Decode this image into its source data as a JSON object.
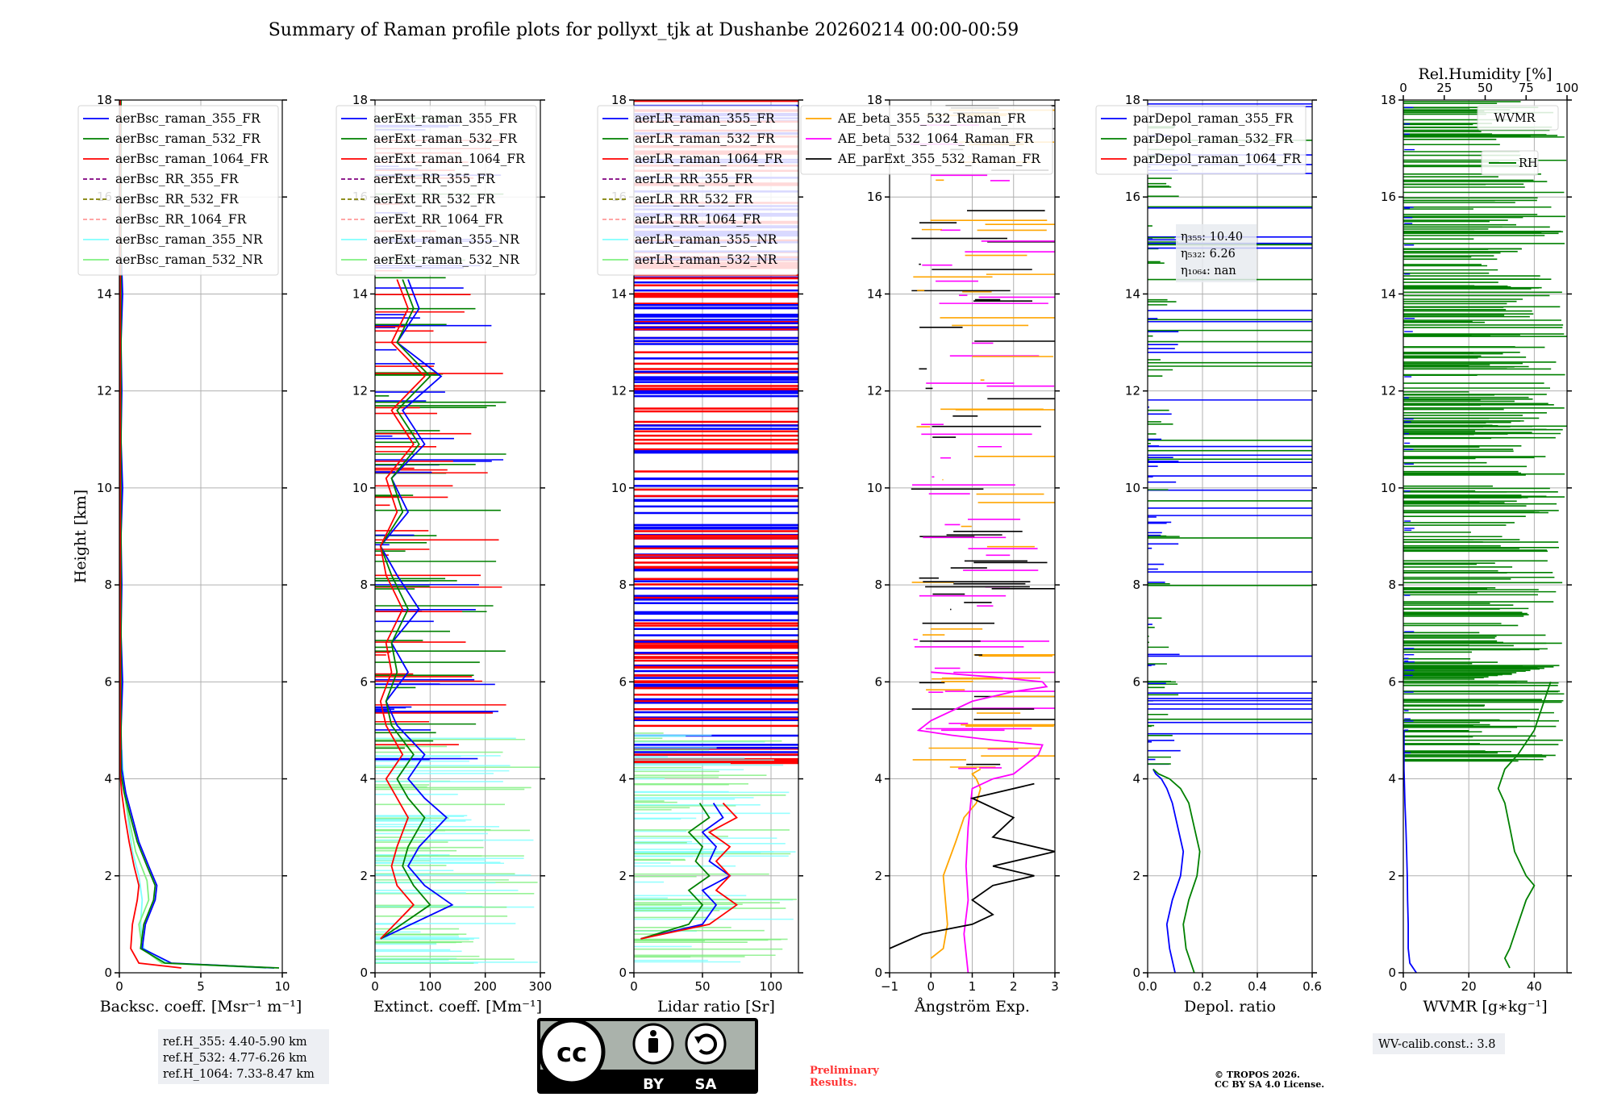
{
  "title": "Summary of Raman profile plots for pollyxt_tjk at Dushanbe 20260214 00:00-00:59",
  "colors": {
    "blue": "#0000ff",
    "green": "#008000",
    "red": "#ff0000",
    "purple": "#800080",
    "olive": "#808000",
    "salmon": "#ff9999",
    "cyan": "#7fffff",
    "lightgreen": "#7ff07f",
    "orange": "#ffa500",
    "magenta": "#ff00ff",
    "black": "#000000"
  },
  "chart_data": [
    {
      "type": "line",
      "name": "backscatter",
      "xlabel": "Backsc. coeff. [Msr⁻¹ m⁻¹]",
      "ylabel": "Height [km]",
      "xlim": [
        0,
        10
      ],
      "ylim": [
        0,
        18
      ],
      "xticks": [
        "0",
        "5",
        "10"
      ],
      "yticks": [
        "0",
        "2",
        "4",
        "6",
        "8",
        "10",
        "12",
        "14",
        "16",
        "18"
      ],
      "legend": [
        "aerBsc_raman_355_FR",
        "aerBsc_raman_532_FR",
        "aerBsc_raman_1064_FR",
        "aerBsc_RR_355_FR",
        "aerBsc_RR_532_FR",
        "aerBsc_RR_1064_FR",
        "aerBsc_raman_355_NR",
        "aerBsc_raman_532_NR"
      ],
      "series": [
        {
          "name": "aerBsc_raman_355_NR",
          "color": "cyan",
          "x": [
            9.5,
            3.0,
            1.5,
            1.3,
            1.4,
            1.2,
            0.8,
            0.6,
            0.4,
            0.3,
            0.2,
            0.15
          ],
          "y": [
            0.1,
            0.2,
            0.5,
            1.0,
            1.5,
            2.0,
            2.5,
            3.0,
            3.5,
            3.9,
            4.3,
            4.6
          ]
        },
        {
          "name": "aerBsc_raman_532_NR",
          "color": "lightgreen",
          "x": [
            9.0,
            2.6,
            1.4,
            1.2,
            1.8,
            1.7,
            1.0,
            0.7,
            0.4,
            0.2
          ],
          "y": [
            0.1,
            0.2,
            0.5,
            1.0,
            1.5,
            1.9,
            2.5,
            3.0,
            3.5,
            4.0
          ]
        },
        {
          "name": "aerBsc_raman_355_FR",
          "color": "blue",
          "x": [
            9.5,
            3.2,
            1.4,
            1.6,
            2.2,
            2.3,
            1.8,
            1.2,
            0.8,
            0.4,
            0.15,
            0.1,
            0.2,
            0.1,
            0.15,
            0.1,
            0.2,
            0.1,
            0.15,
            0.1,
            0.2,
            0.1,
            0.1
          ],
          "y": [
            0.1,
            0.2,
            0.5,
            1.0,
            1.5,
            1.8,
            2.2,
            2.7,
            3.2,
            3.7,
            4.2,
            5.0,
            6.0,
            7.0,
            8.0,
            9.0,
            10.0,
            11.0,
            12.0,
            13.0,
            14.0,
            15.0,
            18.0
          ]
        },
        {
          "name": "aerBsc_raman_532_FR",
          "color": "green",
          "x": [
            9.8,
            2.8,
            1.3,
            1.5,
            2.1,
            2.2,
            1.7,
            1.1,
            0.7,
            0.3,
            0.1,
            0.1
          ],
          "y": [
            0.1,
            0.2,
            0.5,
            1.0,
            1.5,
            1.8,
            2.2,
            2.7,
            3.2,
            3.7,
            4.1,
            18.0
          ]
        },
        {
          "name": "aerBsc_raman_1064_FR",
          "color": "red",
          "x": [
            3.8,
            1.2,
            0.7,
            0.8,
            1.1,
            1.2,
            0.9,
            0.6,
            0.35,
            0.15,
            0.05,
            0.05
          ],
          "y": [
            0.1,
            0.2,
            0.5,
            1.0,
            1.5,
            1.8,
            2.2,
            2.7,
            3.2,
            3.7,
            4.1,
            18.0
          ]
        }
      ]
    },
    {
      "type": "line",
      "name": "extinction",
      "xlabel": "Extinct. coeff. [Mm⁻¹]",
      "xlim": [
        0,
        300
      ],
      "ylim": [
        0,
        18
      ],
      "xticks": [
        "0",
        "100",
        "200",
        "300"
      ],
      "yticks": [
        "0",
        "2",
        "4",
        "6",
        "8",
        "10",
        "12",
        "14",
        "16",
        "18"
      ],
      "legend": [
        "aerExt_raman_355_FR",
        "aerExt_raman_532_FR",
        "aerExt_raman_1064_FR",
        "aerExt_RR_355_FR",
        "aerExt_RR_532_FR",
        "aerExt_RR_1064_FR",
        "aerExt_raman_355_NR",
        "aerExt_raman_532_NR"
      ],
      "series": [
        {
          "name": "aerExt_raman_355_FR",
          "color": "blue",
          "x": [
            10,
            140,
            90,
            60,
            80,
            130,
            90,
            60,
            90,
            40,
            20,
            60,
            30,
            80,
            40,
            10,
            60,
            30,
            90,
            50,
            120,
            40,
            80,
            60
          ],
          "y": [
            0.7,
            1.4,
            1.8,
            2.2,
            2.6,
            3.2,
            3.6,
            4.0,
            4.5,
            5.1,
            5.6,
            6.2,
            6.8,
            7.5,
            8.2,
            8.8,
            9.5,
            10.2,
            10.9,
            11.6,
            12.3,
            13.0,
            13.7,
            14.3
          ]
        },
        {
          "name": "aerExt_raman_532_FR",
          "color": "green",
          "x": [
            10,
            100,
            70,
            50,
            60,
            90,
            60,
            40,
            70,
            30,
            20,
            40,
            30,
            60,
            30,
            10,
            50,
            30,
            80,
            40,
            100,
            40,
            70,
            50
          ],
          "y": [
            0.7,
            1.4,
            1.8,
            2.2,
            2.6,
            3.2,
            3.6,
            4.0,
            4.5,
            5.1,
            5.6,
            6.2,
            6.8,
            7.5,
            8.2,
            8.8,
            9.5,
            10.2,
            10.9,
            11.6,
            12.3,
            13.0,
            13.7,
            14.3
          ]
        },
        {
          "name": "aerExt_raman_1064_FR",
          "color": "red",
          "x": [
            10,
            70,
            40,
            30,
            40,
            60,
            40,
            20,
            50,
            20,
            10,
            30,
            20,
            50,
            20,
            10,
            40,
            20,
            70,
            30,
            90,
            30,
            60,
            40
          ],
          "y": [
            0.7,
            1.4,
            1.8,
            2.2,
            2.6,
            3.2,
            3.6,
            4.0,
            4.5,
            5.1,
            5.6,
            6.2,
            6.8,
            7.5,
            8.2,
            8.8,
            9.5,
            10.2,
            10.9,
            11.6,
            12.3,
            13.0,
            13.7,
            14.3
          ]
        }
      ]
    },
    {
      "type": "line",
      "name": "lidar_ratio",
      "xlabel": "Lidar ratio [Sr]",
      "xlim": [
        0,
        120
      ],
      "ylim": [
        0,
        18
      ],
      "xticks": [
        "0",
        "50",
        "100"
      ],
      "yticks": [
        "0",
        "2",
        "4",
        "6",
        "8",
        "10",
        "12",
        "14",
        "16",
        "18"
      ],
      "legend": [
        "aerLR_raman_355_FR",
        "aerLR_raman_532_FR",
        "aerLR_raman_1064_FR",
        "aerLR_RR_355_FR",
        "aerLR_RR_532_FR",
        "aerLR_RR_1064_FR",
        "aerLR_raman_355_NR",
        "aerLR_raman_532_NR"
      ],
      "series": [
        {
          "name": "aerLR_raman_355_FR",
          "color": "blue",
          "x": [
            5,
            50,
            60,
            50,
            70,
            55,
            60,
            50,
            65,
            58
          ],
          "y": [
            0.7,
            1.0,
            1.4,
            1.7,
            2.0,
            2.3,
            2.6,
            2.9,
            3.2,
            3.5
          ]
        },
        {
          "name": "aerLR_raman_532_FR",
          "color": "green",
          "x": [
            5,
            40,
            50,
            40,
            55,
            45,
            50,
            40,
            55,
            48
          ],
          "y": [
            0.7,
            1.0,
            1.4,
            1.7,
            2.0,
            2.3,
            2.6,
            2.9,
            3.2,
            3.5
          ]
        },
        {
          "name": "aerLR_raman_1064_FR",
          "color": "red",
          "x": [
            5,
            55,
            75,
            60,
            70,
            60,
            70,
            55,
            75,
            65
          ],
          "y": [
            0.7,
            1.0,
            1.4,
            1.7,
            2.0,
            2.3,
            2.6,
            2.9,
            3.2,
            3.5
          ]
        }
      ]
    },
    {
      "type": "line",
      "name": "angstrom",
      "xlabel": "Ångström Exp.",
      "xlim": [
        -1,
        3
      ],
      "ylim": [
        0,
        18
      ],
      "xticks": [
        "−1",
        "0",
        "1",
        "2",
        "3"
      ],
      "yticks": [
        "0",
        "2",
        "4",
        "6",
        "8",
        "10",
        "12",
        "14",
        "16",
        "18"
      ],
      "legend": [
        "AE_beta_355_532_Raman_FR",
        "AE_beta_532_1064_Raman_FR",
        "AE_parExt_355_532_Raman_FR"
      ],
      "series": [
        {
          "name": "AE_beta_355_532_Raman_FR",
          "color": "orange",
          "x": [
            0.0,
            0.3,
            0.4,
            0.3,
            0.6,
            0.8,
            1.1,
            1.2,
            1.1,
            1.0,
            1.2
          ],
          "y": [
            0.3,
            0.5,
            1.0,
            2.0,
            2.7,
            3.2,
            3.5,
            3.8,
            4.0,
            4.1,
            4.2
          ]
        },
        {
          "name": "AE_beta_532_1064_Raman_FR",
          "color": "magenta",
          "x": [
            0.9,
            0.8,
            0.9,
            0.85,
            0.9,
            1.0,
            1.5,
            2.0,
            2.3,
            2.6,
            2.7,
            1.5,
            0.5,
            -0.3,
            0.0,
            1.0,
            2.0,
            2.8,
            2.7,
            1.5,
            0.0
          ],
          "y": [
            0.0,
            0.8,
            1.5,
            2.2,
            3.0,
            3.8,
            4.0,
            4.1,
            4.3,
            4.5,
            4.7,
            4.8,
            4.9,
            5.0,
            5.2,
            5.6,
            5.8,
            5.9,
            6.0,
            6.1,
            6.2
          ]
        },
        {
          "name": "AE_parExt_355_532_Raman_FR",
          "color": "black",
          "x": [
            -1.0,
            -0.2,
            1.0,
            1.5,
            1.0,
            1.5,
            2.5,
            1.5,
            3.0,
            1.5,
            2.0,
            1.0,
            2.5
          ],
          "y": [
            0.5,
            0.8,
            1.0,
            1.2,
            1.5,
            1.8,
            2.0,
            2.2,
            2.5,
            2.8,
            3.2,
            3.6,
            3.9
          ]
        }
      ]
    },
    {
      "type": "line",
      "name": "depolarization",
      "xlabel": "Depol. ratio",
      "xlim": [
        0.0,
        0.6
      ],
      "ylim": [
        0,
        18
      ],
      "xticks": [
        "0.0",
        "0.2",
        "0.4",
        "0.6"
      ],
      "yticks": [
        "0",
        "2",
        "4",
        "6",
        "8",
        "10",
        "12",
        "14",
        "16",
        "18"
      ],
      "legend": [
        "parDepol_raman_355_FR",
        "parDepol_raman_532_FR",
        "parDepol_raman_1064_FR"
      ],
      "series": [
        {
          "name": "parDepol_raman_355_FR",
          "color": "blue",
          "x": [
            0.1,
            0.08,
            0.07,
            0.09,
            0.12,
            0.13,
            0.11,
            0.09,
            0.07,
            0.05,
            0.03,
            0.02
          ],
          "y": [
            0.0,
            0.5,
            1.0,
            1.5,
            2.0,
            2.5,
            3.0,
            3.5,
            3.8,
            4.0,
            4.1,
            4.2
          ]
        },
        {
          "name": "parDepol_raman_532_FR",
          "color": "green",
          "x": [
            0.17,
            0.14,
            0.13,
            0.15,
            0.18,
            0.19,
            0.17,
            0.15,
            0.12,
            0.08,
            0.04,
            0.02
          ],
          "y": [
            0.0,
            0.5,
            1.0,
            1.5,
            2.0,
            2.5,
            3.0,
            3.5,
            3.8,
            4.0,
            4.1,
            4.2
          ]
        }
      ]
    },
    {
      "type": "line",
      "name": "water_vapor",
      "xlabel": "WVMR [g∗kg⁻¹]",
      "title": "Rel.Humidity [%]",
      "xlim": [
        0,
        50
      ],
      "ylim": [
        0,
        18
      ],
      "top_xlim": [
        0,
        100
      ],
      "xticks": [
        "0",
        "20",
        "40"
      ],
      "top_xticks": [
        "0",
        "25",
        "50",
        "75",
        "100"
      ],
      "yticks": [
        "0",
        "2",
        "4",
        "6",
        "8",
        "10",
        "12",
        "14",
        "16",
        "18"
      ],
      "legend": [
        "WVMR",
        "RH"
      ],
      "series": [
        {
          "name": "WVMR",
          "color": "blue",
          "x": [
            4,
            2,
            1.5,
            1.5,
            1.3,
            1.2,
            1.0,
            0.8,
            0.5,
            0.3,
            0.2,
            0.2
          ],
          "y": [
            0.0,
            0.2,
            0.5,
            1.0,
            1.5,
            2.0,
            2.5,
            3.0,
            3.5,
            4.0,
            4.2,
            5.0
          ]
        },
        {
          "name": "RH",
          "color": "green",
          "x": [
            65,
            62,
            65,
            70,
            75,
            80,
            75,
            68,
            65,
            62,
            58,
            60,
            62,
            70,
            80,
            85,
            90
          ],
          "y": [
            0.1,
            0.3,
            0.5,
            1.0,
            1.5,
            1.8,
            2.0,
            2.5,
            3.0,
            3.5,
            3.8,
            4.0,
            4.2,
            4.5,
            5.0,
            5.5,
            6.0
          ]
        }
      ]
    }
  ],
  "annotations": {
    "eta_355": "η₃₅₅: 10.40",
    "eta_532": "η₅₃₂: 6.26",
    "eta_1064": "η₁₀₆₄: nan",
    "refH_355": "ref.H_355: 4.40-5.90 km",
    "refH_532": "ref.H_532: 4.77-6.26 km",
    "refH_1064": "ref.H_1064: 7.33-8.47 km",
    "wv_calib": "WV-calib.const.: 3.8",
    "preliminary_1": "Preliminary",
    "preliminary_2": "Results.",
    "copyright_1": "© TROPOS 2026.",
    "copyright_2": "CC BY SA 4.0 License.",
    "cc_logo": "cc",
    "cc_by": "BY",
    "cc_sa": "SA"
  }
}
